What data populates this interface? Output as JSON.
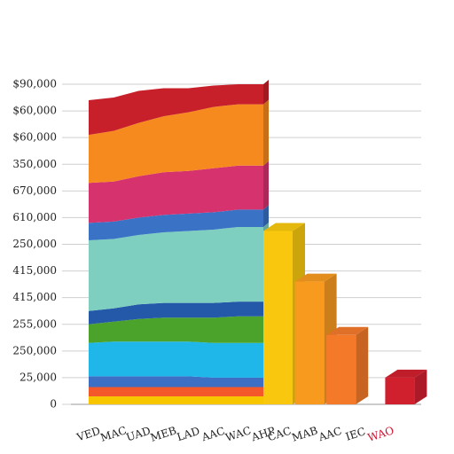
{
  "chart_data": [
    {
      "type": "area",
      "categories": [
        "VED",
        "MAC",
        "UAD",
        "MEB",
        "LAD",
        "AAC",
        "WAC",
        "AHP"
      ],
      "ylim": [
        0,
        12
      ],
      "yticks": [
        {
          "value": 0,
          "label": "0"
        },
        {
          "value": 1,
          "label": "25,000"
        },
        {
          "value": 2,
          "label": "250,000"
        },
        {
          "value": 3,
          "label": "255,000"
        },
        {
          "value": 4,
          "label": "415,000"
        },
        {
          "value": 5,
          "label": "415,000"
        },
        {
          "value": 6,
          "label": "250,000"
        },
        {
          "value": 7,
          "label": "610,000"
        },
        {
          "value": 8,
          "label": "670,000"
        },
        {
          "value": 9,
          "label": "350,000"
        },
        {
          "value": 10,
          "label": "$60,000"
        },
        {
          "value": 11,
          "label": "$60,000"
        },
        {
          "value": 12,
          "label": "$90,000"
        }
      ],
      "grid": true,
      "series": [
        {
          "color": "#f7c600",
          "values": [
            0.3,
            0.3,
            0.3,
            0.3,
            0.3,
            0.3,
            0.3,
            0.3
          ]
        },
        {
          "color": "#f4572a",
          "values": [
            0.35,
            0.35,
            0.35,
            0.35,
            0.35,
            0.35,
            0.35,
            0.35
          ]
        },
        {
          "color": "#3d6fc4",
          "values": [
            0.4,
            0.4,
            0.4,
            0.4,
            0.4,
            0.35,
            0.35,
            0.35
          ]
        },
        {
          "color": "#1fb6ea",
          "values": [
            1.25,
            1.3,
            1.3,
            1.3,
            1.3,
            1.3,
            1.3,
            1.3
          ]
        },
        {
          "color": "#4ca32c",
          "values": [
            0.7,
            0.75,
            0.85,
            0.9,
            0.9,
            0.95,
            1.0,
            1.0
          ]
        },
        {
          "color": "#2359a8",
          "values": [
            0.5,
            0.5,
            0.55,
            0.55,
            0.55,
            0.55,
            0.55,
            0.55
          ]
        },
        {
          "color": "#7fcfc0",
          "values": [
            2.65,
            2.6,
            2.6,
            2.65,
            2.7,
            2.75,
            2.8,
            2.8
          ]
        },
        {
          "color": "#3a72c6",
          "values": [
            0.65,
            0.65,
            0.65,
            0.65,
            0.65,
            0.65,
            0.65,
            0.65
          ]
        },
        {
          "color": "#d6336e",
          "values": [
            1.5,
            1.5,
            1.55,
            1.6,
            1.6,
            1.65,
            1.65,
            1.65
          ]
        },
        {
          "color": "#f78a1e",
          "values": [
            1.8,
            1.9,
            2.0,
            2.1,
            2.2,
            2.3,
            2.3,
            2.3
          ]
        },
        {
          "color": "#c8202b",
          "values": [
            1.3,
            1.25,
            1.2,
            1.05,
            0.9,
            0.8,
            0.75,
            0.75
          ]
        }
      ]
    },
    {
      "type": "bar",
      "categories": [
        "CAC",
        "MAB",
        "AAC",
        "IEC",
        "WAO"
      ],
      "values": [
        6.5,
        4.6,
        2.6,
        null,
        1.0
      ],
      "colors": [
        "#f9c80e",
        "#f79a1e",
        "#f47a2a",
        null,
        "#d0202e"
      ],
      "label_colors": [
        "#222222",
        "#222222",
        "#222222",
        "#222222",
        "#d0102e"
      ]
    }
  ]
}
